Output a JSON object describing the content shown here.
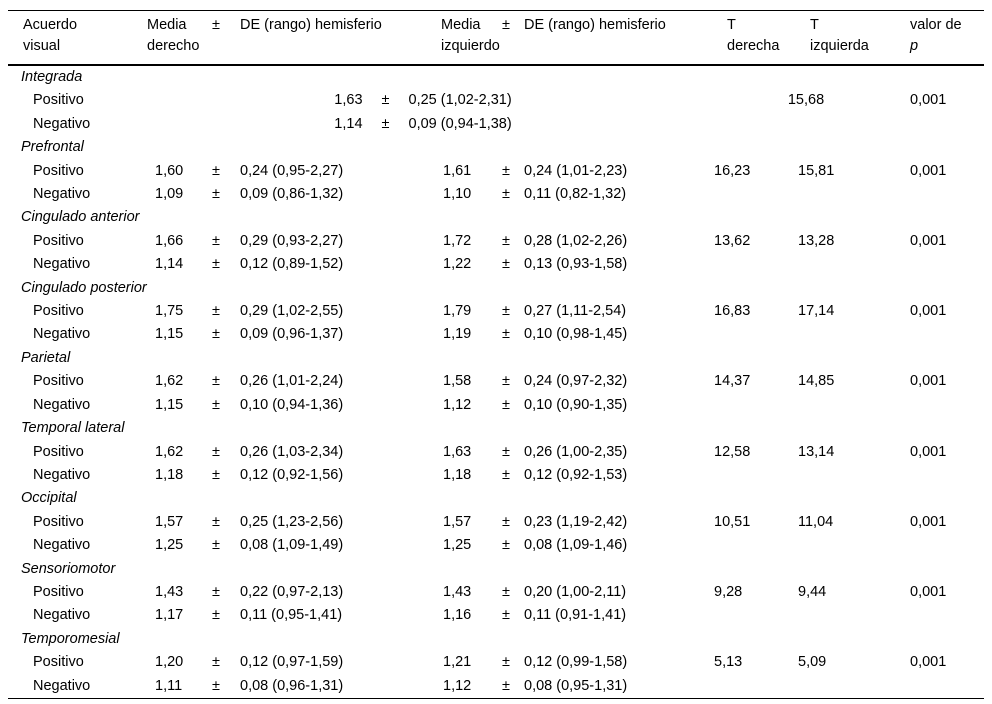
{
  "page": {
    "background": "#ffffff",
    "text_color": "#000000"
  },
  "table": {
    "pm_symbol": "±",
    "header": {
      "acuerdo_line1": "Acuerdo",
      "acuerdo_line2": "visual",
      "media_der_line1": "Media",
      "media_der_line2": "derecho",
      "pm_der": "±",
      "de_der": "DE (rango) hemisferio",
      "media_izq_line1": "Media",
      "media_izq_line2": "izquierdo",
      "pm_izq": "±",
      "de_izq": "DE (rango) hemisferio",
      "t_der_line1": "T",
      "t_der_line2": "derecha",
      "t_izq_line1": "T",
      "t_izq_line2": "izquierda",
      "p_line1": "valor de",
      "p_line2": "p"
    },
    "sections": [
      {
        "name": "Integrada",
        "combined": true,
        "rows": [
          {
            "label": "Positivo",
            "mean": "1,63",
            "de": "0,25 (1,02-2,31)",
            "t": "15,68",
            "p": "0,001"
          },
          {
            "label": "Negativo",
            "mean": "1,14",
            "de": "0,09 (0,94-1,38)",
            "t": "",
            "p": ""
          }
        ]
      },
      {
        "name": "Prefrontal",
        "combined": false,
        "rows": [
          {
            "label": "Positivo",
            "mean_der": "1,60",
            "de_der": "0,24 (0,95-2,27)",
            "mean_izq": "1,61",
            "de_izq": "0,24 (1,01-2,23)",
            "t_der": "16,23",
            "t_izq": "15,81",
            "p": "0,001"
          },
          {
            "label": "Negativo",
            "mean_der": "1,09",
            "de_der": "0,09 (0,86-1,32)",
            "mean_izq": "1,10",
            "de_izq": "0,11 (0,82-1,32)",
            "t_der": "",
            "t_izq": "",
            "p": ""
          }
        ]
      },
      {
        "name": "Cingulado anterior",
        "combined": false,
        "rows": [
          {
            "label": "Positivo",
            "mean_der": "1,66",
            "de_der": "0,29 (0,93-2,27)",
            "mean_izq": "1,72",
            "de_izq": "0,28 (1,02-2,26)",
            "t_der": "13,62",
            "t_izq": "13,28",
            "p": "0,001"
          },
          {
            "label": "Negativo",
            "mean_der": "1,14",
            "de_der": "0,12 (0,89-1,52)",
            "mean_izq": "1,22",
            "de_izq": "0,13 (0,93-1,58)",
            "t_der": "",
            "t_izq": "",
            "p": ""
          }
        ]
      },
      {
        "name": "Cingulado posterior",
        "combined": false,
        "rows": [
          {
            "label": "Positivo",
            "mean_der": "1,75",
            "de_der": "0,29 (1,02-2,55)",
            "mean_izq": "1,79",
            "de_izq": "0,27 (1,11-2,54)",
            "t_der": "16,83",
            "t_izq": "17,14",
            "p": "0,001"
          },
          {
            "label": "Negativo",
            "mean_der": "1,15",
            "de_der": "0,09 (0,96-1,37)",
            "mean_izq": "1,19",
            "de_izq": "0,10 (0,98-1,45)",
            "t_der": "",
            "t_izq": "",
            "p": ""
          }
        ]
      },
      {
        "name": "Parietal",
        "combined": false,
        "rows": [
          {
            "label": "Positivo",
            "mean_der": "1,62",
            "de_der": "0,26 (1,01-2,24)",
            "mean_izq": "1,58",
            "de_izq": "0,24 (0,97-2,32)",
            "t_der": "14,37",
            "t_izq": "14,85",
            "p": "0,001"
          },
          {
            "label": "Negativo",
            "mean_der": "1,15",
            "de_der": "0,10 (0,94-1,36)",
            "mean_izq": "1,12",
            "de_izq": "0,10 (0,90-1,35)",
            "t_der": "",
            "t_izq": "",
            "p": ""
          }
        ]
      },
      {
        "name": "Temporal lateral",
        "combined": false,
        "rows": [
          {
            "label": "Positivo",
            "mean_der": "1,62",
            "de_der": "0,26 (1,03-2,34)",
            "mean_izq": "1,63",
            "de_izq": "0,26 (1,00-2,35)",
            "t_der": "12,58",
            "t_izq": "13,14",
            "p": "0,001"
          },
          {
            "label": "Negativo",
            "mean_der": "1,18",
            "de_der": "0,12 (0,92-1,56)",
            "mean_izq": "1,18",
            "de_izq": "0,12 (0,92-1,53)",
            "t_der": "",
            "t_izq": "",
            "p": ""
          }
        ]
      },
      {
        "name": "Occipital",
        "combined": false,
        "rows": [
          {
            "label": "Positivo",
            "mean_der": "1,57",
            "de_der": "0,25 (1,23-2,56)",
            "mean_izq": "1,57",
            "de_izq": "0,23 (1,19-2,42)",
            "t_der": "10,51",
            "t_izq": "11,04",
            "p": "0,001"
          },
          {
            "label": "Negativo",
            "mean_der": "1,25",
            "de_der": "0,08 (1,09-1,49)",
            "mean_izq": "1,25",
            "de_izq": "0,08 (1,09-1,46)",
            "t_der": "",
            "t_izq": "",
            "p": ""
          }
        ]
      },
      {
        "name": "Sensoriomotor",
        "combined": false,
        "rows": [
          {
            "label": "Positivo",
            "mean_der": "1,43",
            "de_der": "0,22 (0,97-2,13)",
            "mean_izq": "1,43",
            "de_izq": "0,20 (1,00-2,11)",
            "t_der": "9,28",
            "t_izq": "9,44",
            "p": "0,001"
          },
          {
            "label": "Negativo",
            "mean_der": "1,17",
            "de_der": "0,11 (0,95-1,41)",
            "mean_izq": "1,16",
            "de_izq": "0,11 (0,91-1,41)",
            "t_der": "",
            "t_izq": "",
            "p": ""
          }
        ]
      },
      {
        "name": "Temporomesial",
        "combined": false,
        "rows": [
          {
            "label": "Positivo",
            "mean_der": "1,20",
            "de_der": "0,12 (0,97-1,59)",
            "mean_izq": "1,21",
            "de_izq": "0,12 (0,99-1,58)",
            "t_der": "5,13",
            "t_izq": "5,09",
            "p": "0,001"
          },
          {
            "label": "Negativo",
            "mean_der": "1,11",
            "de_der": "0,08 (0,96-1,31)",
            "mean_izq": "1,12",
            "de_izq": "0,08 (0,95-1,31)",
            "t_der": "",
            "t_izq": "",
            "p": ""
          }
        ]
      }
    ]
  }
}
